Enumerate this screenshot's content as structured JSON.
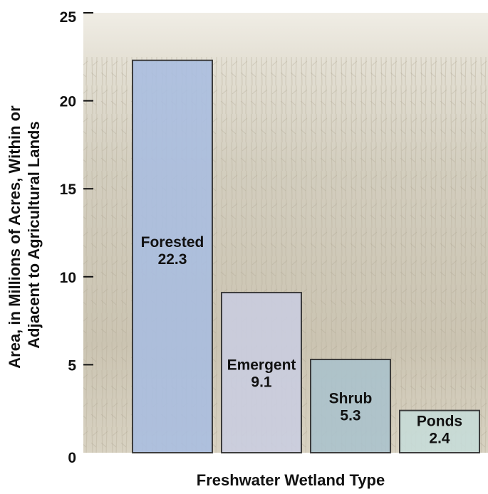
{
  "chart_data": {
    "type": "bar",
    "categories": [
      "Forested",
      "Emergent",
      "Shrub",
      "Ponds"
    ],
    "values": [
      22.3,
      9.1,
      5.3,
      2.4
    ],
    "value_labels": [
      "22.3",
      "9.1",
      "5.3",
      "2.4"
    ],
    "bar_colors": [
      "#a9bde0",
      "#c9cde0",
      "#aac1cc",
      "#c6dcd8"
    ],
    "xlabel": "Freshwater Wetland Type",
    "ylabel_lines": [
      "Area, in Millions of Acres, Within or",
      "Adjacent to Agricultural Lands"
    ],
    "ylim": [
      0,
      25
    ],
    "yticks": [
      0,
      5,
      10,
      15,
      20,
      25
    ],
    "grid": false,
    "legend": "none",
    "background": "photograph of dry cornfield",
    "colors": {
      "bar_stroke": "#3c3c3c",
      "axis": "#111111",
      "photo_sky": "#ece8de",
      "photo_field": "#cfc9b8"
    }
  }
}
